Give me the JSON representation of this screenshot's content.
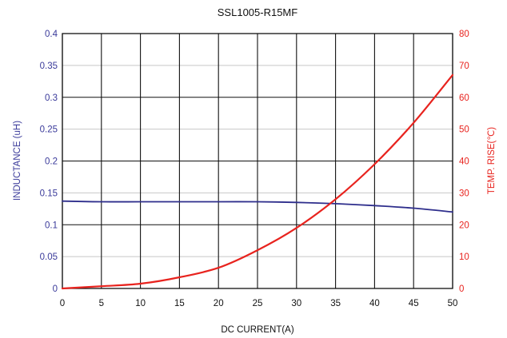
{
  "chart_data": {
    "type": "line",
    "title": "SSL1005-R15MF",
    "xlabel": "DC CURRENT(A)",
    "ylabel_left": "INDUCTANCE (uH)",
    "ylabel_right": "TEMP. RISE(℃)",
    "xlim": [
      0,
      50
    ],
    "ylim_left": [
      0,
      0.4
    ],
    "ylim_right": [
      0,
      80
    ],
    "x_ticks": [
      "0",
      "5",
      "10",
      "15",
      "20",
      "25",
      "30",
      "35",
      "40",
      "45",
      "50"
    ],
    "y_left_ticks": [
      "0",
      "0.05",
      "0.1",
      "0.15",
      "0.2",
      "0.25",
      "0.3",
      "0.35",
      "0.4"
    ],
    "y_right_ticks": [
      "0",
      "10",
      "20",
      "30",
      "40",
      "50",
      "60",
      "70",
      "80"
    ],
    "grid": true,
    "colors": {
      "inductance": "#2e2e8c",
      "temp": "#e8231e",
      "grid_major": "#111111",
      "grid_minor": "#c8c8c8"
    },
    "series": [
      {
        "axis": "left",
        "x": [
          0,
          5,
          10,
          15,
          20,
          25,
          30,
          35,
          40,
          45,
          50
        ],
        "values": [
          0.137,
          0.136,
          0.136,
          0.136,
          0.136,
          0.136,
          0.135,
          0.133,
          0.13,
          0.126,
          0.12
        ]
      },
      {
        "axis": "right",
        "x": [
          0,
          5,
          10,
          15,
          20,
          25,
          30,
          35,
          40,
          45,
          50
        ],
        "values": [
          0,
          0.7,
          1.5,
          3.5,
          6.5,
          12,
          19,
          28,
          39,
          52,
          67
        ]
      }
    ]
  }
}
